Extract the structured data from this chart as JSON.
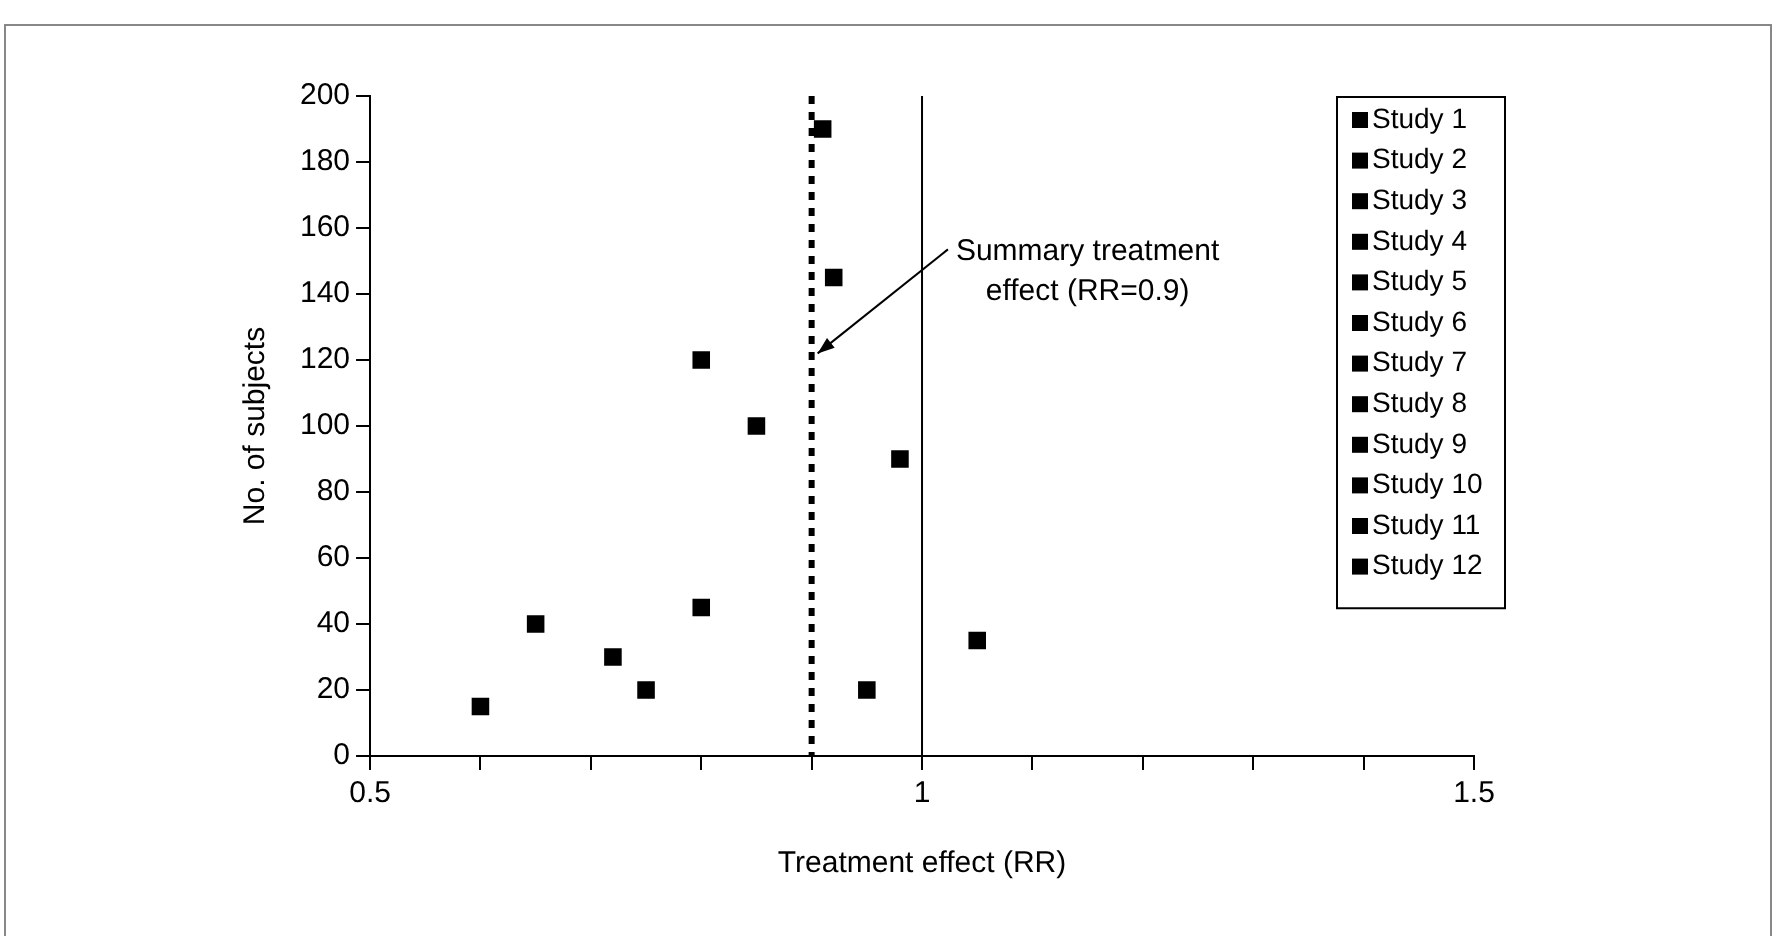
{
  "chart_data": {
    "type": "scatter",
    "xlabel": "Treatment effect (RR)",
    "ylabel": "No. of subjects",
    "series": [
      {
        "name": "Study 1",
        "color": "#000000",
        "x": [
          0.6
        ],
        "values": [
          15
        ]
      },
      {
        "name": "Study 2",
        "color": "#000000",
        "x": [
          0.65
        ],
        "values": [
          40
        ]
      },
      {
        "name": "Study 3",
        "color": "#000000",
        "x": [
          0.72
        ],
        "values": [
          30
        ]
      },
      {
        "name": "Study 4",
        "color": "#000000",
        "x": [
          0.75
        ],
        "values": [
          20
        ]
      },
      {
        "name": "Study 5",
        "color": "#000000",
        "x": [
          0.8
        ],
        "values": [
          45
        ]
      },
      {
        "name": "Study 6",
        "color": "#000000",
        "x": [
          0.8
        ],
        "values": [
          120
        ]
      },
      {
        "name": "Study 7",
        "color": "#000000",
        "x": [
          0.85
        ],
        "values": [
          100
        ]
      },
      {
        "name": "Study 8",
        "color": "#000000",
        "x": [
          0.91
        ],
        "values": [
          190
        ]
      },
      {
        "name": "Study 9",
        "color": "#000000",
        "x": [
          0.92
        ],
        "values": [
          145
        ]
      },
      {
        "name": "Study 10",
        "color": "#000000",
        "x": [
          0.95
        ],
        "values": [
          20
        ]
      },
      {
        "name": "Study 11",
        "color": "#000000",
        "x": [
          0.98
        ],
        "values": [
          90
        ]
      },
      {
        "name": "Study 12",
        "color": "#000000",
        "x": [
          1.05
        ],
        "values": [
          35
        ]
      }
    ],
    "xlim": [
      0.5,
      1.5
    ],
    "xticks": [
      0.5,
      {
        "value": 0.6,
        "label": null
      },
      {
        "value": 0.7,
        "label": null
      },
      {
        "value": 0.8,
        "label": null
      },
      {
        "value": 0.9,
        "label": null
      },
      1,
      {
        "value": 1.1,
        "label": null
      },
      {
        "value": 1.2,
        "label": null
      },
      {
        "value": 1.3,
        "label": null
      },
      {
        "value": 1.4,
        "label": null
      },
      1.5
    ],
    "ylim": [
      0,
      200
    ],
    "yticks": [
      0,
      20,
      40,
      60,
      80,
      100,
      120,
      140,
      160,
      180,
      200
    ],
    "ref_lines": [
      {
        "axis": "x",
        "value": 0.9,
        "line_style": "dotted",
        "color": "#000000"
      },
      {
        "axis": "x",
        "value": 1,
        "line_style": "solid",
        "color": "#000000"
      }
    ],
    "annotations": [
      {
        "text": "Summary treatment effect (RR=0.9)",
        "x": 0.9,
        "y": 122
      }
    ],
    "grid": false,
    "legend": "top right",
    "marker": "square"
  }
}
